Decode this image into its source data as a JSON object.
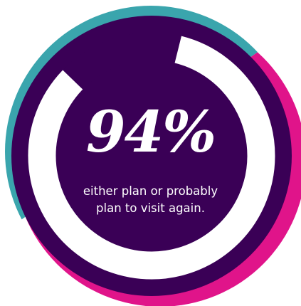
{
  "chart_data": {
    "type": "pie",
    "value_label": "94%",
    "values": [
      94,
      6
    ],
    "caption_lines": [
      "either plan or probably",
      "plan to visit again."
    ]
  },
  "colors": {
    "teal": "#3aa5ad",
    "magenta": "#e0148a",
    "purple": "#3a0056",
    "ring": "#ffffff",
    "background": "#ffffff"
  }
}
